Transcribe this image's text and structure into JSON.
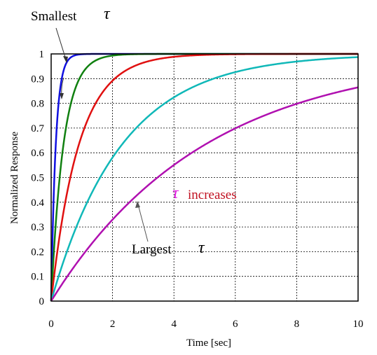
{
  "chart_data": {
    "type": "line",
    "title": "",
    "xlabel": "Time [sec]",
    "ylabel": "Normalized Response",
    "xlim": [
      0,
      10
    ],
    "ylim": [
      0,
      1
    ],
    "xticks": [
      "0",
      "2",
      "4",
      "6",
      "8",
      "10"
    ],
    "xtick_values": [
      0,
      2,
      4,
      6,
      8,
      10
    ],
    "yticks": [
      "0",
      "0.1",
      "0.2",
      "0.3",
      "0.4",
      "0.5",
      "0.6",
      "0.7",
      "0.8",
      "0.9",
      "1"
    ],
    "ytick_values": [
      0,
      0.1,
      0.2,
      0.3,
      0.4,
      0.5,
      0.6,
      0.7,
      0.8,
      0.9,
      1
    ],
    "grid": true,
    "model": "1 - exp(-t/tau)",
    "series": [
      {
        "tau": 0.15,
        "color": "#1010e0"
      },
      {
        "tau": 0.4,
        "color": "#108010"
      },
      {
        "tau": 0.9,
        "color": "#e01010"
      },
      {
        "tau": 2.3,
        "color": "#10b8b8"
      },
      {
        "tau": 5.0,
        "color": "#b010b0"
      }
    ],
    "annotations": {
      "smallest_text": "Smallest",
      "largest_text": "Largest",
      "tau_symbol": "τ",
      "increases_text": "increases",
      "tau_color": "#e010e0",
      "increases_color": "#c01020"
    }
  }
}
